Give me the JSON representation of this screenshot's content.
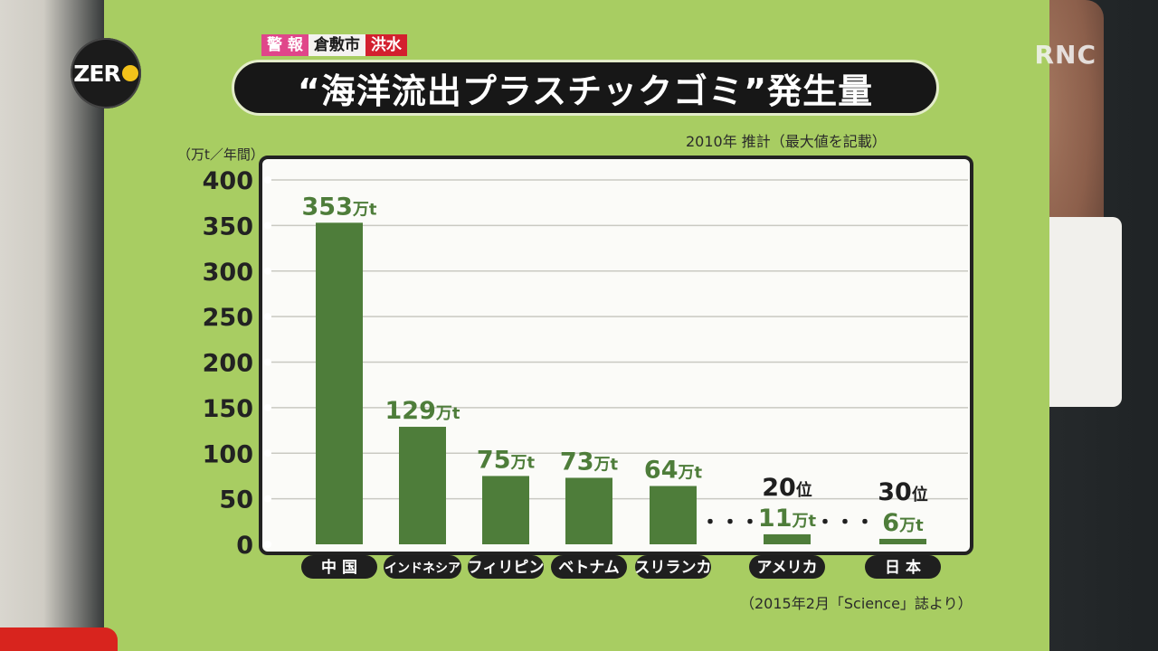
{
  "broadcast": {
    "logo_text": "ZER",
    "channel_watermark": "RNC",
    "alert": {
      "label": "警 報",
      "place": "倉敷市",
      "type": "洪水"
    }
  },
  "chart_data": {
    "type": "bar",
    "title": "“海洋流出プラスチックゴミ”発生量",
    "subtitle": "2010年 推計（最大値を記載）",
    "ylabel": "（万t／年間）",
    "source": "（2015年2月「Science」誌より）",
    "ylim": [
      0,
      400
    ],
    "yticks": [
      0,
      50,
      100,
      150,
      200,
      250,
      300,
      350,
      400
    ],
    "categories": [
      "中 国",
      "インドネシア",
      "フィリピン",
      "ベトナム",
      "スリランカ",
      "アメリカ",
      "日 本"
    ],
    "values": [
      353,
      129,
      75,
      73,
      64,
      11,
      6
    ],
    "value_labels": [
      "353万t",
      "129万t",
      "75万t",
      "73万t",
      "64万t",
      "11万t",
      "6万t"
    ],
    "rank_labels": [
      "",
      "",
      "",
      "",
      "",
      "20位",
      "30位"
    ],
    "ellipsis": "・・・",
    "bar_color": "#4e7d3a",
    "label_color": "#4e7d3a",
    "grid": true
  }
}
